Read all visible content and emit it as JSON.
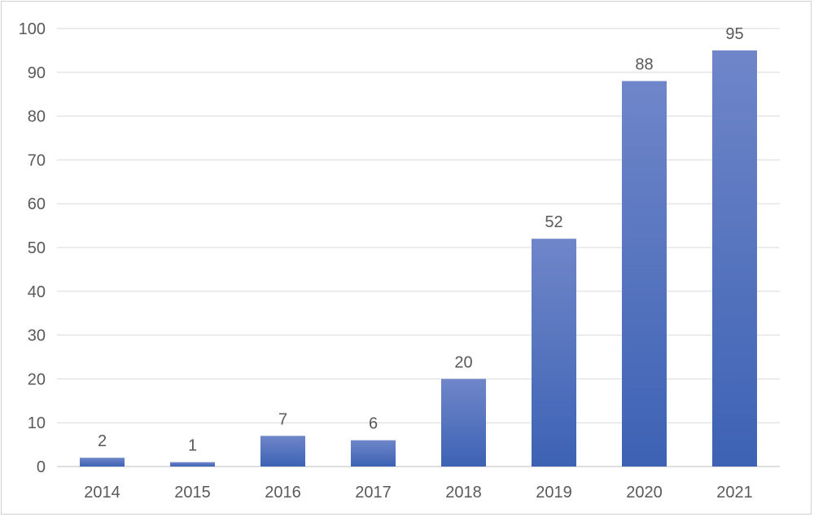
{
  "chart_data": {
    "type": "bar",
    "title": "",
    "xlabel": "",
    "ylabel": "",
    "categories": [
      "2014",
      "2015",
      "2016",
      "2017",
      "2018",
      "2019",
      "2020",
      "2021"
    ],
    "values": [
      2,
      1,
      7,
      6,
      20,
      52,
      88,
      95
    ],
    "ylim": [
      0,
      100
    ],
    "yticks": [
      0,
      10,
      20,
      30,
      40,
      50,
      60,
      70,
      80,
      90,
      100
    ],
    "grid": true,
    "legend": "none",
    "colors": {
      "bar_top": "#6f86c9",
      "bar_bottom": "#3d62b4",
      "grid": "#d9d9d9",
      "axis": "#bfbfbf",
      "text": "#595959"
    }
  }
}
